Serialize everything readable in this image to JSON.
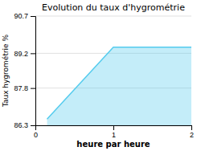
{
  "chart_data": {
    "type": "area",
    "title": "Evolution du taux d'hygrométrie",
    "x_label": "heure par heure",
    "y_label": "Taux hygrométrie %",
    "x": [
      0.15,
      0.15,
      1.0,
      2.0
    ],
    "values": [
      86.55,
      86.55,
      89.45,
      89.45
    ],
    "color": "#55ccee",
    "xlim": [
      0,
      2
    ],
    "xticks": [
      0,
      1,
      2
    ],
    "ylim": [
      86.3,
      90.7
    ],
    "yticks": [
      86.3,
      87.8,
      89.2,
      90.7
    ],
    "grid": "y"
  }
}
